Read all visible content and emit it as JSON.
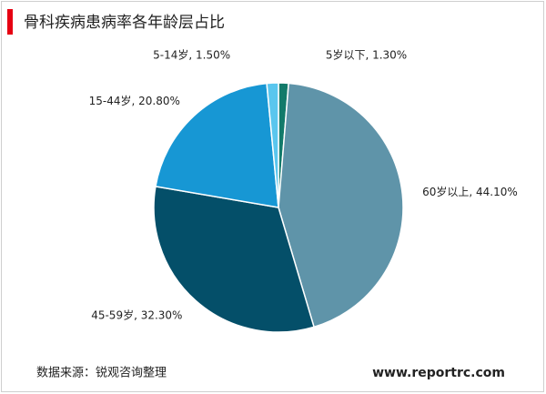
{
  "chart_data": {
    "type": "pie",
    "title": "骨科疾病患病率各年龄层占比",
    "values": [
      1.3,
      44.1,
      32.3,
      20.8,
      1.5
    ],
    "value_labels": [
      "5岁以下, 1.30%",
      "60岁以上, 44.10%",
      "45-59岁, 32.30%",
      "15-44岁, 20.80%",
      "5-14岁, 1.50%"
    ],
    "colors": [
      "#127a6a",
      "#5f94a9",
      "#044f69",
      "#1797d4",
      "#5ac6ee"
    ],
    "source": "数据来源：锐观咨询整理",
    "website": "www.reportrc.com"
  }
}
